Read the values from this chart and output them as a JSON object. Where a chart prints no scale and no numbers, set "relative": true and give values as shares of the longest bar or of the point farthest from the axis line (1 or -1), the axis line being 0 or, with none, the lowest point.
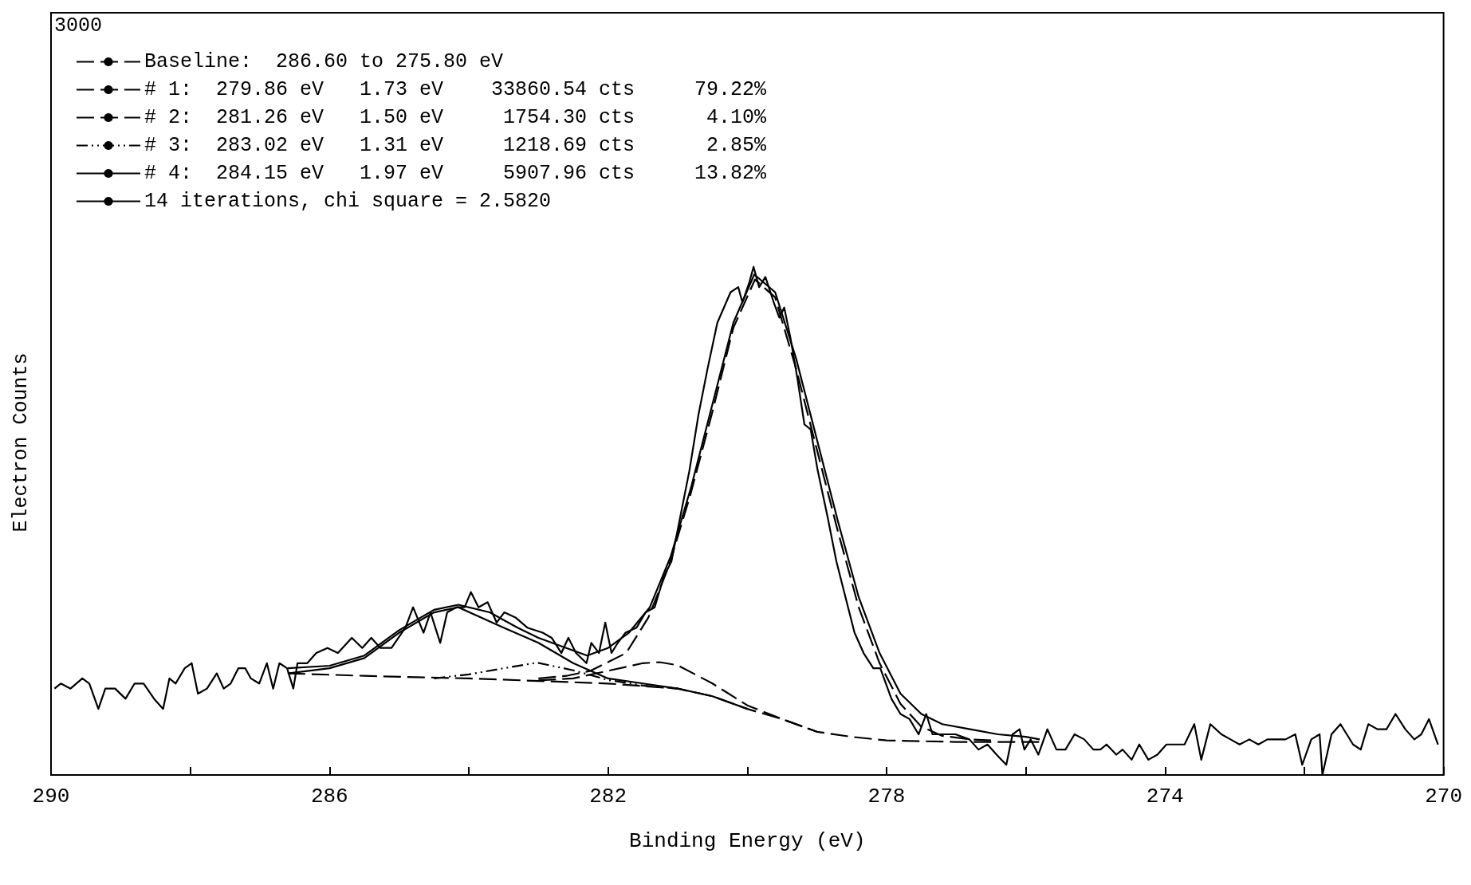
{
  "chart_data": {
    "type": "line",
    "relative": true,
    "xlabel": "Binding Energy (eV)",
    "ylabel": "Electron Counts",
    "annotations": [
      "3000"
    ],
    "xlim": [
      290,
      270
    ],
    "xticks": [
      290,
      {
        "value": 288,
        "label": null
      },
      286,
      {
        "value": 284,
        "label": null
      },
      282,
      {
        "value": 280,
        "label": null
      },
      278,
      {
        "value": 276,
        "label": null
      },
      274,
      {
        "value": 272,
        "label": null
      },
      270
    ],
    "grid": false,
    "legend": "top left",
    "marker": "none",
    "series": [
      {
        "color": "#000000",
        "line_style": "solid",
        "x": [
          289.95,
          289.86,
          289.72,
          289.55,
          289.45,
          289.32,
          289.22,
          289.08,
          288.93,
          288.8,
          288.67,
          288.52,
          288.39,
          288.3,
          288.21,
          288.08,
          287.98,
          287.89,
          287.76,
          287.62,
          287.52,
          287.42,
          287.31,
          287.21,
          287.13,
          287.01,
          286.9,
          286.81,
          286.72,
          286.61,
          286.52,
          286.46,
          286.32,
          286.19,
          286.03,
          285.88,
          285.68,
          285.53,
          285.4,
          285.27,
          285.11,
          284.91,
          284.8,
          284.65,
          284.55,
          284.41,
          284.31,
          284.18,
          284.06,
          283.97,
          283.86,
          283.73,
          283.6,
          283.49,
          283.33,
          283.16,
          282.94,
          282.81,
          282.67,
          282.57,
          282.46,
          282.31,
          282.24,
          282.13,
          282.04,
          281.95,
          281.86,
          281.75,
          281.59,
          281.46,
          281.33,
          281.2,
          281.09,
          280.96,
          280.83,
          280.7,
          280.57,
          280.43,
          280.24,
          280.13,
          280.07,
          279.97,
          279.91,
          279.83,
          279.74,
          279.62,
          279.54,
          279.47,
          279.38,
          279.28,
          279.18,
          279.09,
          278.99,
          278.85,
          278.72,
          278.59,
          278.46,
          278.33,
          278.19,
          278.09,
          277.93,
          277.8,
          277.67,
          277.54,
          277.43,
          277.34,
          277.21,
          277.01,
          276.81,
          276.68,
          276.55,
          276.42,
          276.28,
          276.19,
          276.09,
          276.02,
          275.93,
          275.82,
          275.69,
          275.56,
          275.43,
          275.3,
          275.16,
          275.03,
          274.93,
          274.84,
          274.7,
          274.61,
          274.48,
          274.37,
          274.24,
          274.11,
          273.98,
          273.85,
          273.72,
          273.58,
          273.48,
          273.35,
          273.19,
          273.06,
          272.93,
          272.79,
          272.66,
          272.53,
          272.4,
          272.27,
          272.13,
          272.03,
          271.9,
          271.78,
          271.74,
          271.61,
          271.48,
          271.3,
          271.19,
          271.08,
          270.95,
          270.82,
          270.69,
          270.55,
          270.42,
          270.32,
          270.21,
          270.08
        ],
        "values": [
          0.17,
          0.18,
          0.17,
          0.19,
          0.18,
          0.13,
          0.17,
          0.17,
          0.15,
          0.18,
          0.18,
          0.15,
          0.13,
          0.19,
          0.18,
          0.21,
          0.22,
          0.16,
          0.17,
          0.2,
          0.17,
          0.18,
          0.21,
          0.21,
          0.19,
          0.18,
          0.22,
          0.17,
          0.22,
          0.21,
          0.17,
          0.22,
          0.22,
          0.24,
          0.25,
          0.24,
          0.27,
          0.25,
          0.27,
          0.25,
          0.25,
          0.29,
          0.33,
          0.28,
          0.32,
          0.26,
          0.32,
          0.33,
          0.33,
          0.36,
          0.33,
          0.34,
          0.3,
          0.32,
          0.31,
          0.29,
          0.28,
          0.27,
          0.24,
          0.27,
          0.24,
          0.22,
          0.26,
          0.24,
          0.3,
          0.24,
          0.26,
          0.28,
          0.29,
          0.32,
          0.33,
          0.39,
          0.42,
          0.51,
          0.6,
          0.71,
          0.8,
          0.89,
          0.95,
          0.96,
          0.93,
          0.97,
          1,
          0.96,
          0.98,
          0.93,
          0.9,
          0.92,
          0.86,
          0.78,
          0.69,
          0.68,
          0.6,
          0.51,
          0.42,
          0.35,
          0.28,
          0.24,
          0.21,
          0.21,
          0.15,
          0.12,
          0.11,
          0.08,
          0.12,
          0.08,
          0.08,
          0.08,
          0.07,
          0.05,
          0.06,
          0.04,
          0.02,
          0.08,
          0.09,
          0.05,
          0.07,
          0.04,
          0.09,
          0.05,
          0.05,
          0.08,
          0.07,
          0.05,
          0.05,
          0.06,
          0.04,
          0.05,
          0.03,
          0.06,
          0.03,
          0.04,
          0.06,
          0.06,
          0.06,
          0.1,
          0.03,
          0.1,
          0.08,
          0.07,
          0.06,
          0.07,
          0.06,
          0.07,
          0.07,
          0.07,
          0.08,
          0.02,
          0.07,
          0.08,
          0,
          0.08,
          0.1,
          0.06,
          0.05,
          0.1,
          0.09,
          0.09,
          0.12,
          0.09,
          0.07,
          0.08,
          0.11,
          0.06
        ]
      },
      {
        "name": "Baseline:  286.60 to 275.80 eV",
        "color": "#000000",
        "line_style": "dashed",
        "x": [
          286.6,
          285.5,
          284,
          283,
          282,
          281.5,
          281,
          280.5,
          280,
          279.5,
          279,
          278.5,
          278,
          277,
          275.8
        ],
        "values": [
          0.2,
          0.195,
          0.19,
          0.185,
          0.18,
          0.175,
          0.17,
          0.155,
          0.13,
          0.11,
          0.085,
          0.075,
          0.068,
          0.065,
          0.065
        ]
      },
      {
        "name": "# 1:  279.86 eV   1.73 eV    33860.54 cts     79.22%",
        "color": "#000000",
        "line_style": "dashed",
        "x": [
          283,
          282.6,
          282.25,
          281.74,
          281.42,
          281.13,
          280.82,
          280.51,
          280.2,
          279.89,
          279.6,
          279.3,
          279,
          278.7,
          278.4,
          278.1,
          277.8,
          277.5,
          277.2,
          276.8,
          276.5
        ],
        "values": [
          0.19,
          0.195,
          0.205,
          0.24,
          0.31,
          0.41,
          0.55,
          0.71,
          0.88,
          0.975,
          0.94,
          0.8,
          0.64,
          0.48,
          0.33,
          0.22,
          0.14,
          0.095,
          0.077,
          0.07,
          0.068
        ]
      },
      {
        "name": "# 2:  281.26 eV   1.50 eV     1754.30 cts      4.10%",
        "color": "#000000",
        "line_style": "dashed",
        "x": [
          283,
          282.5,
          282,
          281.5,
          281.26,
          281,
          280.5,
          280,
          279.5,
          279
        ],
        "values": [
          0.186,
          0.19,
          0.205,
          0.22,
          0.222,
          0.216,
          0.18,
          0.137,
          0.11,
          0.085
        ]
      },
      {
        "name": "# 3:  283.02 eV   1.31 eV     1218.69 cts      2.85%",
        "color": "#000000",
        "line_style": "dotted",
        "x": [
          284.5,
          284,
          283.5,
          283.02,
          282.5,
          282,
          281.5,
          281
        ],
        "values": [
          0.19,
          0.198,
          0.21,
          0.221,
          0.206,
          0.187,
          0.176,
          0.17
        ]
      },
      {
        "name": "# 4:  284.15 eV   1.97 eV     5907.96 cts     13.82%",
        "color": "#000000",
        "line_style": "solid",
        "x": [
          286.6,
          286,
          285.5,
          285,
          284.5,
          284.15,
          283.5,
          283,
          282.5,
          282,
          281.5,
          281,
          280.5,
          280
        ],
        "values": [
          0.2,
          0.21,
          0.23,
          0.28,
          0.32,
          0.33,
          0.29,
          0.26,
          0.22,
          0.19,
          0.18,
          0.17,
          0.155,
          0.13
        ]
      },
      {
        "name": "14 iterations, chi square = 2.5820",
        "color": "#000000",
        "line_style": "solid",
        "x": [
          286.6,
          286,
          285.5,
          285,
          284.5,
          284.15,
          283.7,
          283.3,
          283,
          282.6,
          282.3,
          282,
          281.7,
          281.4,
          281.1,
          280.8,
          280.5,
          280.2,
          279.9,
          279.6,
          279.3,
          279,
          278.7,
          278.4,
          278.1,
          277.8,
          277.5,
          277.2,
          276.8,
          276.4,
          276,
          275.8
        ],
        "values": [
          0.21,
          0.215,
          0.235,
          0.285,
          0.325,
          0.335,
          0.32,
          0.29,
          0.27,
          0.25,
          0.235,
          0.25,
          0.28,
          0.33,
          0.43,
          0.57,
          0.73,
          0.89,
          0.985,
          0.95,
          0.82,
          0.66,
          0.5,
          0.35,
          0.24,
          0.16,
          0.12,
          0.1,
          0.09,
          0.08,
          0.075,
          0.07
        ]
      }
    ]
  }
}
